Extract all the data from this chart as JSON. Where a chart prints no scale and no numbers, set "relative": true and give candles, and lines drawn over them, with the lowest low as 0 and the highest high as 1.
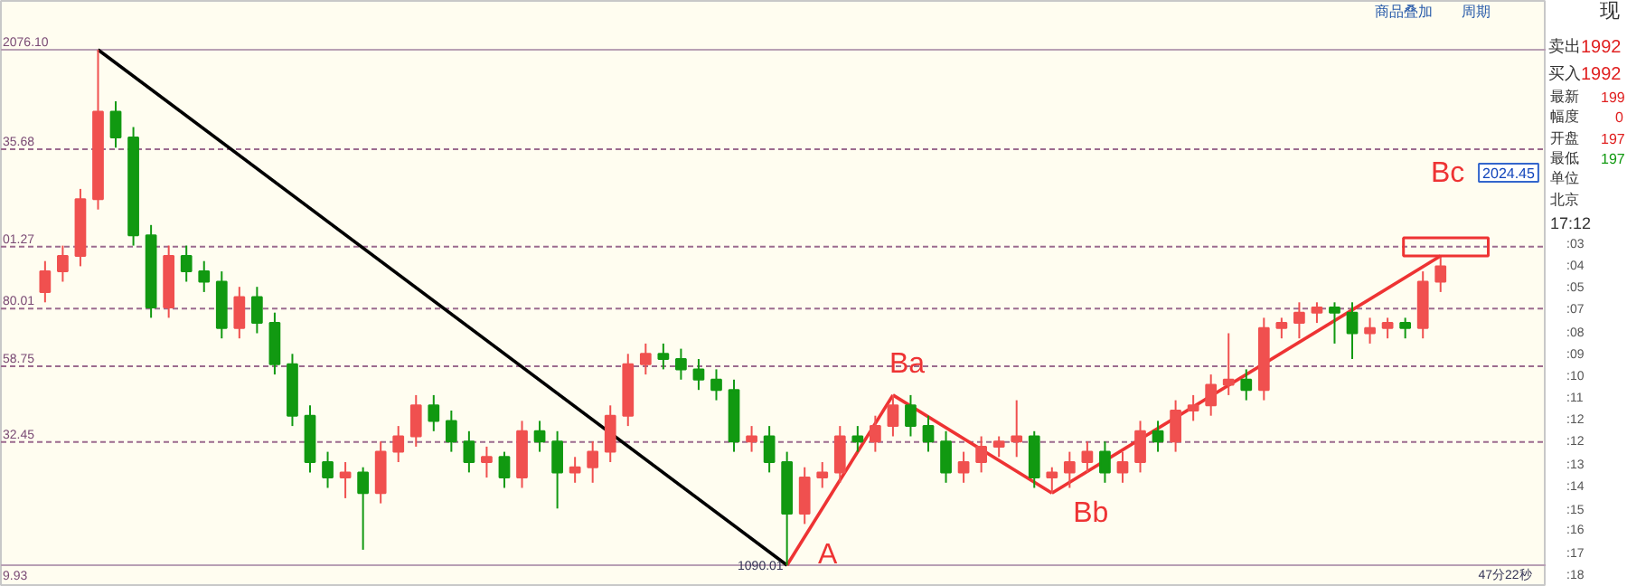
{
  "chart_data": {
    "type": "candlestick",
    "relative": true,
    "categories": [
      null,
      null,
      null,
      null,
      null,
      null,
      null,
      null,
      null,
      null,
      null,
      null,
      null,
      null,
      null,
      null,
      null,
      null,
      null,
      null,
      null,
      null,
      null,
      null,
      null,
      null,
      null,
      null,
      null,
      null,
      null,
      null,
      null,
      null,
      null,
      null,
      null,
      null,
      null,
      null,
      null,
      null,
      null,
      null,
      null,
      null,
      null,
      null,
      null,
      null,
      null,
      null,
      null,
      null,
      null,
      null,
      null,
      null,
      null,
      null,
      null,
      null,
      null,
      null,
      null,
      null,
      null,
      null,
      null,
      null,
      null,
      null,
      null,
      null,
      null,
      null,
      null,
      null,
      null,
      null
    ],
    "tick_labels": false,
    "ohlc": [
      [
        0.53,
        0.59,
        0.51,
        0.57
      ],
      [
        0.57,
        0.62,
        0.55,
        0.6
      ],
      [
        0.6,
        0.73,
        0.58,
        0.71
      ],
      [
        0.71,
        1.0,
        0.69,
        0.88
      ],
      [
        0.88,
        0.9,
        0.81,
        0.83
      ],
      [
        0.83,
        0.85,
        0.62,
        0.64
      ],
      [
        0.64,
        0.66,
        0.48,
        0.5
      ],
      [
        0.5,
        0.62,
        0.48,
        0.6
      ],
      [
        0.6,
        0.62,
        0.55,
        0.57
      ],
      [
        0.57,
        0.59,
        0.53,
        0.55
      ],
      [
        0.55,
        0.57,
        0.44,
        0.46
      ],
      [
        0.46,
        0.54,
        0.44,
        0.52
      ],
      [
        0.52,
        0.54,
        0.45,
        0.47
      ],
      [
        0.47,
        0.49,
        0.37,
        0.39
      ],
      [
        0.39,
        0.41,
        0.27,
        0.29
      ],
      [
        0.29,
        0.31,
        0.18,
        0.2
      ],
      [
        0.2,
        0.22,
        0.15,
        0.17
      ],
      [
        0.17,
        0.2,
        0.13,
        0.18
      ],
      [
        0.18,
        0.19,
        0.03,
        0.14
      ],
      [
        0.14,
        0.24,
        0.12,
        0.22
      ],
      [
        0.22,
        0.27,
        0.2,
        0.25
      ],
      [
        0.25,
        0.33,
        0.23,
        0.31
      ],
      [
        0.31,
        0.33,
        0.26,
        0.28
      ],
      [
        0.28,
        0.3,
        0.22,
        0.24
      ],
      [
        0.24,
        0.26,
        0.18,
        0.2
      ],
      [
        0.2,
        0.23,
        0.17,
        0.21
      ],
      [
        0.21,
        0.22,
        0.15,
        0.17
      ],
      [
        0.17,
        0.28,
        0.15,
        0.26
      ],
      [
        0.26,
        0.28,
        0.22,
        0.24
      ],
      [
        0.24,
        0.26,
        0.11,
        0.18
      ],
      [
        0.18,
        0.21,
        0.16,
        0.19
      ],
      [
        0.19,
        0.24,
        0.16,
        0.22
      ],
      [
        0.22,
        0.31,
        0.2,
        0.29
      ],
      [
        0.29,
        0.41,
        0.27,
        0.39
      ],
      [
        0.39,
        0.43,
        0.37,
        0.41
      ],
      [
        0.41,
        0.43,
        0.38,
        0.4
      ],
      [
        0.4,
        0.42,
        0.36,
        0.38
      ],
      [
        0.38,
        0.4,
        0.34,
        0.36
      ],
      [
        0.36,
        0.38,
        0.32,
        0.34
      ],
      [
        0.34,
        0.36,
        0.22,
        0.24
      ],
      [
        0.24,
        0.27,
        0.22,
        0.25
      ],
      [
        0.25,
        0.27,
        0.18,
        0.2
      ],
      [
        0.2,
        0.22,
        0.0,
        0.1
      ],
      [
        0.1,
        0.19,
        0.08,
        0.17
      ],
      [
        0.17,
        0.2,
        0.15,
        0.18
      ],
      [
        0.18,
        0.27,
        0.16,
        0.25
      ],
      [
        0.25,
        0.27,
        0.22,
        0.24
      ],
      [
        0.24,
        0.29,
        0.22,
        0.27
      ],
      [
        0.27,
        0.33,
        0.25,
        0.31
      ],
      [
        0.31,
        0.33,
        0.25,
        0.27
      ],
      [
        0.27,
        0.29,
        0.22,
        0.24
      ],
      [
        0.24,
        0.26,
        0.16,
        0.18
      ],
      [
        0.18,
        0.22,
        0.16,
        0.2
      ],
      [
        0.2,
        0.25,
        0.18,
        0.23
      ],
      [
        0.23,
        0.25,
        0.21,
        0.24
      ],
      [
        0.24,
        0.32,
        0.21,
        0.25
      ],
      [
        0.25,
        0.26,
        0.15,
        0.17
      ],
      [
        0.17,
        0.19,
        0.14,
        0.18
      ],
      [
        0.18,
        0.22,
        0.15,
        0.2
      ],
      [
        0.2,
        0.24,
        0.18,
        0.22
      ],
      [
        0.22,
        0.24,
        0.16,
        0.18
      ],
      [
        0.18,
        0.22,
        0.16,
        0.2
      ],
      [
        0.2,
        0.28,
        0.18,
        0.26
      ],
      [
        0.26,
        0.28,
        0.22,
        0.24
      ],
      [
        0.24,
        0.32,
        0.22,
        0.3
      ],
      [
        0.3,
        0.33,
        0.28,
        0.31
      ],
      [
        0.31,
        0.37,
        0.29,
        0.35
      ],
      [
        0.35,
        0.45,
        0.33,
        0.36
      ],
      [
        0.36,
        0.38,
        0.32,
        0.34
      ],
      [
        0.34,
        0.48,
        0.32,
        0.46
      ],
      [
        0.46,
        0.48,
        0.44,
        0.47
      ],
      [
        0.47,
        0.51,
        0.44,
        0.49
      ],
      [
        0.49,
        0.51,
        0.47,
        0.5
      ],
      [
        0.5,
        0.51,
        0.43,
        0.49
      ],
      [
        0.49,
        0.51,
        0.4,
        0.45
      ],
      [
        0.45,
        0.48,
        0.43,
        0.46
      ],
      [
        0.46,
        0.48,
        0.44,
        0.47
      ],
      [
        0.47,
        0.48,
        0.44,
        0.46
      ],
      [
        0.46,
        0.57,
        0.44,
        0.55
      ],
      [
        0.55,
        0.6,
        0.53,
        0.58
      ]
    ],
    "colors": [
      "#f0504f",
      "#f0504f",
      "#f0504f",
      "#f0504f",
      "#119911",
      "#119911",
      "#119911",
      "#f0504f",
      "#119911",
      "#119911",
      "#119911",
      "#f0504f",
      "#119911",
      "#119911",
      "#119911",
      "#119911",
      "#119911",
      "#f0504f",
      "#119911",
      "#f0504f",
      "#f0504f",
      "#f0504f",
      "#119911",
      "#119911",
      "#119911",
      "#f0504f",
      "#119911",
      "#f0504f",
      "#119911",
      "#119911",
      "#f0504f",
      "#f0504f",
      "#f0504f",
      "#f0504f",
      "#f0504f",
      "#119911",
      "#119911",
      "#119911",
      "#119911",
      "#119911",
      "#f0504f",
      "#119911",
      "#119911",
      "#f0504f",
      "#f0504f",
      "#f0504f",
      "#119911",
      "#f0504f",
      "#f0504f",
      "#119911",
      "#119911",
      "#119911",
      "#f0504f",
      "#f0504f",
      "#f0504f",
      "#f0504f",
      "#119911",
      "#f0504f",
      "#f0504f",
      "#f0504f",
      "#119911",
      "#f0504f",
      "#f0504f",
      "#119911",
      "#f0504f",
      "#f0504f",
      "#f0504f",
      "#f0504f",
      "#119911",
      "#f0504f",
      "#f0504f",
      "#f0504f",
      "#f0504f",
      "#119911",
      "#119911",
      "#f0504f",
      "#f0504f",
      "#119911",
      "#f0504f",
      "#f0504f"
    ],
    "series": [
      {
        "type": "line",
        "color": "#000000",
        "values": [
          null,
          null,
          null,
          1.0,
          null,
          null,
          null,
          null,
          null,
          null,
          null,
          null,
          null,
          null,
          null,
          null,
          null,
          null,
          null,
          null,
          null,
          null,
          null,
          null,
          null,
          null,
          null,
          null,
          null,
          null,
          null,
          null,
          null,
          null,
          null,
          null,
          null,
          null,
          null,
          null,
          null,
          null,
          0.0,
          null,
          null,
          null,
          null,
          null,
          null,
          null,
          null,
          null,
          null,
          null,
          null,
          null,
          null,
          null,
          null,
          null,
          null,
          null,
          null,
          null,
          null,
          null,
          null,
          null,
          null,
          null,
          null,
          null,
          null,
          null,
          null,
          null,
          null,
          null,
          null,
          null
        ]
      },
      {
        "type": "line",
        "color": "#ee3333",
        "values": [
          null,
          null,
          null,
          null,
          null,
          null,
          null,
          null,
          null,
          null,
          null,
          null,
          null,
          null,
          null,
          null,
          null,
          null,
          null,
          null,
          null,
          null,
          null,
          null,
          null,
          null,
          null,
          null,
          null,
          null,
          null,
          null,
          null,
          null,
          null,
          null,
          null,
          null,
          null,
          null,
          null,
          null,
          0.0,
          null,
          null,
          null,
          null,
          null,
          0.33,
          null,
          null,
          null,
          null,
          null,
          null,
          null,
          null,
          null,
          null,
          null,
          null,
          null,
          null,
          null,
          null,
          null,
          null,
          null,
          null,
          null,
          null,
          null,
          null,
          null,
          null,
          null,
          null,
          null,
          null,
          null
        ]
      },
      {
        "type": "line",
        "color": "#ee3333",
        "values": [
          null,
          null,
          null,
          null,
          null,
          null,
          null,
          null,
          null,
          null,
          null,
          null,
          null,
          null,
          null,
          null,
          null,
          null,
          null,
          null,
          null,
          null,
          null,
          null,
          null,
          null,
          null,
          null,
          null,
          null,
          null,
          null,
          null,
          null,
          null,
          null,
          null,
          null,
          null,
          null,
          null,
          null,
          null,
          null,
          null,
          null,
          null,
          null,
          0.33,
          null,
          null,
          null,
          null,
          null,
          null,
          null,
          null,
          0.14,
          null,
          null,
          null,
          null,
          null,
          null,
          null,
          null,
          null,
          null,
          null,
          null,
          null,
          null,
          null,
          null,
          null,
          null,
          null,
          null,
          null,
          null
        ]
      },
      {
        "type": "line",
        "color": "#ee3333",
        "values": [
          null,
          null,
          null,
          null,
          null,
          null,
          null,
          null,
          null,
          null,
          null,
          null,
          null,
          null,
          null,
          null,
          null,
          null,
          null,
          null,
          null,
          null,
          null,
          null,
          null,
          null,
          null,
          null,
          null,
          null,
          null,
          null,
          null,
          null,
          null,
          null,
          null,
          null,
          null,
          null,
          null,
          null,
          null,
          null,
          null,
          null,
          null,
          null,
          null,
          null,
          null,
          null,
          null,
          null,
          null,
          null,
          null,
          0.14,
          null,
          null,
          null,
          null,
          null,
          null,
          null,
          null,
          null,
          null,
          null,
          null,
          null,
          null,
          null,
          null,
          null,
          null,
          null,
          null,
          null,
          0.6
        ]
      }
    ],
    "ref_lines": [
      {
        "axis": "y",
        "value": 1.0,
        "line_style": "solid",
        "color": "#b8a0b4"
      },
      {
        "axis": "y",
        "value": 0.807,
        "line_style": "dashed",
        "color": "#9c6b8e"
      },
      {
        "axis": "y",
        "value": 0.618,
        "line_style": "dashed",
        "color": "#9c6b8e"
      },
      {
        "axis": "y",
        "value": 0.498,
        "line_style": "dashed",
        "color": "#9c6b8e"
      },
      {
        "axis": "y",
        "value": 0.386,
        "line_style": "dashed",
        "color": "#9c6b8e"
      },
      {
        "axis": "y",
        "value": 0.239,
        "line_style": "dashed",
        "color": "#9c6b8e"
      },
      {
        "axis": "y",
        "value": 0.0,
        "line_style": "solid",
        "color": "#b8a0b4"
      }
    ],
    "annotations": [
      "A",
      "Ba",
      "Bb",
      "Bc",
      "1090.01",
      "2024.45",
      "47分22秒",
      "2076.10",
      "35.68",
      "01.27",
      "80.01",
      "58.75",
      "32.45",
      "9.93",
      "商品叠加",
      "周期",
      "现",
      "卖出",
      "1992",
      "买入",
      "1992",
      "最新",
      "199",
      "幅度",
      "0",
      "开盘",
      "197",
      "最低",
      "197",
      "单位",
      "北京",
      "17:12",
      ":03",
      ":04",
      ":05",
      ":07",
      ":08",
      ":09",
      ":10",
      ":11",
      ":12",
      ":12",
      ":13",
      ":14",
      ":15",
      ":16",
      ":17",
      ":18"
    ]
  }
}
